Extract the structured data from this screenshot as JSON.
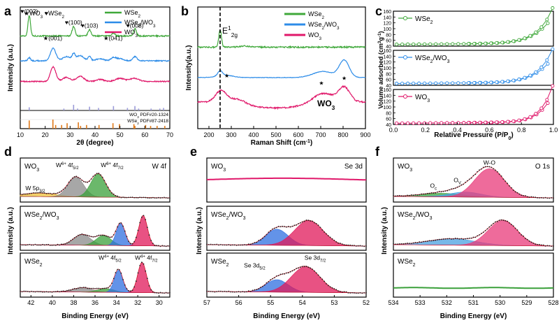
{
  "colors": {
    "wse2": "#3fa83a",
    "comp": "#2d8ce8",
    "wo3": "#e0186a",
    "axis": "#000000",
    "ref_wo3": "#e07a1a",
    "ref_wse2": "#9a9ad8",
    "dots": "#222222",
    "fit_w5p": "#f2c23a",
    "fit_w6": "#8a8a8a",
    "fit_w6b": "#3aa03a",
    "fit_w4a": "#2f6fe0",
    "fit_w4b": "#e0185a",
    "fit_oc": "#3aa03a",
    "fit_ov": "#4aa0e0",
    "fit_wo": "#e83a7a",
    "envelope": "#cc2233"
  },
  "chart_data": [
    {
      "id": "a",
      "type": "line",
      "panel_label": "a",
      "title": "",
      "top_label_parts": [
        "★WO",
        "3",
        " ♥WSe",
        "2"
      ],
      "xlabel_parts": [
        "2θ (degree)"
      ],
      "ylabel": "Intensity (a.u.)",
      "xlim": [
        10,
        70
      ],
      "x_ticks": [
        "10",
        "20",
        "30",
        "40",
        "50",
        "60",
        "70"
      ],
      "legend": [
        {
          "parts": [
            "WSe",
            "2"
          ],
          "color_key": "wse2"
        },
        {
          "parts": [
            "WSe",
            "2",
            "/WO",
            "3"
          ],
          "color_key": "comp"
        },
        {
          "parts": [
            "WO",
            "3"
          ],
          "color_key": "wo3"
        }
      ],
      "series": [
        {
          "name": "WSe2",
          "color_key": "wse2",
          "offset": 0.72,
          "baseline": 0.0,
          "noise": 0.012,
          "peaks": [
            [
              13.6,
              0.2,
              0.5
            ],
            [
              31.4,
              0.09,
              0.6
            ],
            [
              37.8,
              0.06,
              0.6
            ],
            [
              47.4,
              0.03,
              0.6
            ],
            [
              56.0,
              0.07,
              0.6
            ]
          ]
        },
        {
          "name": "WSe2/WO3",
          "color_key": "comp",
          "offset": 0.48,
          "baseline": 0.0,
          "noise": 0.01,
          "peaks": [
            [
              13.6,
              0.03,
              0.5
            ],
            [
              23.2,
              0.12,
              1.1
            ],
            [
              28.5,
              0.04,
              1.5
            ],
            [
              31.4,
              0.06,
              0.6
            ],
            [
              34.0,
              0.05,
              1.5
            ],
            [
              37.8,
              0.04,
              0.6
            ],
            [
              42.0,
              0.02,
              1.5
            ],
            [
              47.4,
              0.03,
              1.0
            ],
            [
              50.0,
              0.02,
              1.5
            ],
            [
              56.0,
              0.04,
              0.8
            ]
          ]
        },
        {
          "name": "WO3",
          "color_key": "wo3",
          "offset": 0.28,
          "baseline": 0.0,
          "noise": 0.01,
          "peaks": [
            [
              23.2,
              0.14,
              1.1
            ],
            [
              28.5,
              0.04,
              1.5
            ],
            [
              34.0,
              0.05,
              1.5
            ],
            [
              42.0,
              0.02,
              1.5
            ],
            [
              50.0,
              0.03,
              1.8
            ],
            [
              55.8,
              0.03,
              1.8
            ]
          ]
        }
      ],
      "annotations": [
        {
          "text": "♥(002)",
          "x": 13.6,
          "y": 0.94
        },
        {
          "text": "★(001)",
          "x": 23.0,
          "y": 0.68
        },
        {
          "text": "♥(100)",
          "x": 31.4,
          "y": 0.83
        },
        {
          "text": "♥(103)",
          "x": 37.8,
          "y": 0.8
        },
        {
          "text": "★(041)",
          "x": 47.2,
          "y": 0.68
        },
        {
          "text": "♥(008)",
          "x": 56.0,
          "y": 0.8
        }
      ],
      "reference_lines": {
        "wse2_label_parts": [
          "WSe",
          "2",
          " PDF#87-2418"
        ],
        "wo3_label_parts": [
          "WO",
          "3",
          " PDF#20-1324"
        ],
        "wse2": [
          [
            13.6,
            0.5
          ],
          [
            27.5,
            0.3
          ],
          [
            31.4,
            0.9
          ],
          [
            33.0,
            0.3
          ],
          [
            37.8,
            0.6
          ],
          [
            41.4,
            0.4
          ],
          [
            47.4,
            0.7
          ],
          [
            53.0,
            0.4
          ],
          [
            56.0,
            0.7
          ],
          [
            57.5,
            0.3
          ],
          [
            62.5,
            0.3
          ],
          [
            66.0,
            0.3
          ],
          [
            67.5,
            0.4
          ]
        ],
        "wo3": [
          [
            13.6,
            0.9
          ],
          [
            23.1,
            1.0
          ],
          [
            24.2,
            0.4
          ],
          [
            26.6,
            0.4
          ],
          [
            28.8,
            0.6
          ],
          [
            33.3,
            0.7
          ],
          [
            34.2,
            0.3
          ],
          [
            36.6,
            0.4
          ],
          [
            41.6,
            0.4
          ],
          [
            47.2,
            0.6
          ],
          [
            49.8,
            0.5
          ],
          [
            55.6,
            0.5
          ],
          [
            56.0,
            0.3
          ],
          [
            60.3,
            0.4
          ],
          [
            62.3,
            0.3
          ],
          [
            64.9,
            0.3
          ],
          [
            68.0,
            0.3
          ]
        ]
      }
    },
    {
      "id": "b",
      "type": "line",
      "panel_label": "b",
      "xlabel_parts": [
        "Raman Shift (cm",
        "-1",
        ")"
      ],
      "ylabel": "Intensity(a.u.)",
      "xlim": [
        150,
        900
      ],
      "x_ticks": [
        "200",
        "300",
        "400",
        "500",
        "600",
        "700",
        "800",
        "900"
      ],
      "dashed_x": 250,
      "peak_label_parts": [
        "E",
        "1",
        "2g"
      ],
      "legend": [
        {
          "parts": [
            "WSe",
            "2"
          ],
          "color_key": "wse2"
        },
        {
          "parts": [
            "WSe",
            "2",
            "/WO",
            "3"
          ],
          "color_key": "comp"
        },
        {
          "parts": [
            "WO",
            "3"
          ],
          "color_key": "wo3"
        }
      ],
      "inline_label_parts": [
        "WO",
        "3"
      ],
      "series": [
        {
          "name": "WSe2",
          "color_key": "wse2",
          "offset": 0.67,
          "baseline": 0.0,
          "noise": 0.012,
          "peaks": [
            [
              250,
              0.14,
              6
            ],
            [
              360,
              0.01,
              20
            ]
          ]
        },
        {
          "name": "WSe2/WO3",
          "color_key": "comp",
          "offset": 0.42,
          "baseline": 0.0,
          "noise": 0.004,
          "peaks": [
            [
              250,
              0.04,
              10
            ],
            [
              270,
              0.02,
              35
            ],
            [
              710,
              0.05,
              45
            ],
            [
              805,
              0.14,
              22
            ]
          ]
        },
        {
          "name": "WO3",
          "color_key": "wo3",
          "offset": 0.22,
          "baseline": 0.0,
          "noise": 0.012,
          "peaks": [
            [
              255,
              0.1,
              25
            ],
            [
              330,
              0.04,
              30
            ],
            [
              710,
              0.08,
              45
            ],
            [
              805,
              0.12,
              25
            ]
          ]
        }
      ],
      "star_marks": [
        [
          280,
          0.42
        ],
        [
          703,
          0.36
        ],
        [
          805,
          0.4
        ]
      ]
    },
    {
      "id": "c",
      "type": "line",
      "panel_label": "c",
      "xlabel_parts": [
        "Relative Pressure (P/P",
        "0",
        ")"
      ],
      "ylabel_parts": [
        "Volume adsorbed (cm",
        "3",
        "g",
        "-1",
        ")"
      ],
      "xlim": [
        0.0,
        1.0
      ],
      "x_ticks": [
        "0.0",
        "0.2",
        "0.4",
        "0.6",
        "0.8",
        "1.0"
      ],
      "sub_ylim": [
        40,
        160
      ],
      "sub_y_ticks": [
        "40",
        "60",
        "80",
        "100",
        "120",
        "140",
        "160"
      ],
      "subplots": [
        {
          "name_parts": [
            "WSe",
            "2"
          ],
          "color_key": "wse2",
          "base": 46,
          "rise": 95,
          "k": 9
        },
        {
          "name_parts": [
            "WSe",
            "2",
            "/WO",
            "3"
          ],
          "color_key": "comp",
          "base": 46,
          "rise": 88,
          "k": 9
        },
        {
          "name_parts": [
            "WO",
            "3"
          ],
          "color_key": "wo3",
          "base": 44,
          "rise": 100,
          "k": 12
        }
      ]
    },
    {
      "id": "d",
      "type": "line",
      "panel_label": "d",
      "xlabel_parts": [
        "Binding Energy (eV)"
      ],
      "ylabel": "Intensity (a.u.)",
      "xlim": [
        43,
        29
      ],
      "x_ticks": [
        "42",
        "40",
        "38",
        "36",
        "34",
        "32",
        "30"
      ],
      "subplots": [
        {
          "name_parts": [
            "WO",
            "3"
          ],
          "corner_parts": [
            "W 4f"
          ],
          "components": [
            {
              "c": 41.2,
              "a": 0.1,
              "w": 1.6,
              "color_key": "fit_w5p"
            },
            {
              "c": 37.8,
              "a": 0.55,
              "w": 0.75,
              "color_key": "fit_w6"
            },
            {
              "c": 35.7,
              "a": 0.65,
              "w": 0.7,
              "color_key": "fit_w6b"
            }
          ],
          "labels": [
            {
              "parts": [
                "W 5p",
                "3/2"
              ],
              "x": 41.6,
              "y": 0.4
            },
            {
              "parts": [
                "W",
                "6+",
                " 4f",
                "5/2"
              ],
              "x": 38.6,
              "y": 0.92
            },
            {
              "parts": [
                "W",
                "6+",
                " 4f",
                "7/2"
              ],
              "x": 34.4,
              "y": 0.92
            }
          ]
        },
        {
          "name_parts": [
            "WSe",
            "2",
            "/WO",
            "3"
          ],
          "corner_parts": [],
          "components": [
            {
              "c": 37.2,
              "a": 0.3,
              "w": 0.8,
              "color_key": "fit_w6"
            },
            {
              "c": 35.2,
              "a": 0.28,
              "w": 0.7,
              "color_key": "fit_w6b"
            },
            {
              "c": 33.6,
              "a": 0.62,
              "w": 0.42,
              "color_key": "fit_w4a"
            },
            {
              "c": 31.5,
              "a": 0.85,
              "w": 0.4,
              "color_key": "fit_w4b"
            }
          ],
          "labels": []
        },
        {
          "name_parts": [
            "WSe",
            "2"
          ],
          "corner_parts": [],
          "components": [
            {
              "c": 37.2,
              "a": 0.12,
              "w": 0.9,
              "color_key": "fit_w6"
            },
            {
              "c": 35.0,
              "a": 0.1,
              "w": 0.8,
              "color_key": "fit_w6b"
            },
            {
              "c": 33.8,
              "a": 0.62,
              "w": 0.4,
              "color_key": "fit_w4a"
            },
            {
              "c": 31.6,
              "a": 0.85,
              "w": 0.4,
              "color_key": "fit_w4b"
            }
          ],
          "labels": [
            {
              "parts": [
                "W",
                "4+",
                " 4f",
                "5/2"
              ],
              "x": 34.6,
              "y": 0.98
            },
            {
              "parts": [
                "W",
                "4+",
                " 4f",
                "7/2"
              ],
              "x": 31.2,
              "y": 0.98
            }
          ]
        }
      ]
    },
    {
      "id": "e",
      "type": "line",
      "panel_label": "e",
      "xlabel_parts": [
        "Binding Energy (eV)"
      ],
      "ylabel": "Intensity (a.u.)",
      "xlim": [
        57,
        52
      ],
      "x_ticks": [
        "57",
        "56",
        "55",
        "54",
        "53",
        "52"
      ],
      "subplots": [
        {
          "name_parts": [
            "WO",
            "3"
          ],
          "corner_parts": [
            "Se 3d"
          ],
          "flat": true,
          "color_key": "wo3",
          "components": [],
          "labels": []
        },
        {
          "name_parts": [
            "WSe",
            "2",
            "/WO",
            "3"
          ],
          "corner_parts": [],
          "components": [
            {
              "c": 54.8,
              "a": 0.45,
              "w": 0.35,
              "color_key": "fit_w4a"
            },
            {
              "c": 53.8,
              "a": 0.7,
              "w": 0.45,
              "color_key": "fit_w4b"
            }
          ],
          "labels": []
        },
        {
          "name_parts": [
            "WSe",
            "2"
          ],
          "corner_parts": [],
          "components": [
            {
              "c": 54.8,
              "a": 0.35,
              "w": 0.35,
              "color_key": "fit_w4a"
            },
            {
              "c": 53.9,
              "a": 0.72,
              "w": 0.45,
              "color_key": "fit_w4b"
            }
          ],
          "labels": [
            {
              "parts": [
                "Se 3d",
                "5/2"
              ],
              "x": 55.5,
              "y": 0.8
            },
            {
              "parts": [
                "Se 3d",
                "7/2"
              ],
              "x": 53.6,
              "y": 0.98
            }
          ]
        }
      ]
    },
    {
      "id": "f",
      "type": "line",
      "panel_label": "f",
      "xlabel_parts": [
        "Binding Energy (eV)"
      ],
      "ylabel": "Intensity (a.u.)",
      "xlim": [
        534,
        528
      ],
      "x_ticks": [
        "534",
        "533",
        "532",
        "531",
        "530",
        "529",
        "528"
      ],
      "subplots": [
        {
          "name_parts": [
            "WO",
            "3"
          ],
          "corner_parts": [
            "O 1s"
          ],
          "components": [
            {
              "c": 532.2,
              "a": 0.1,
              "w": 0.8,
              "color_key": "fit_oc"
            },
            {
              "c": 531.3,
              "a": 0.14,
              "w": 0.6,
              "color_key": "fit_ov"
            },
            {
              "c": 530.4,
              "a": 0.8,
              "w": 0.55,
              "color_key": "fit_wo"
            }
          ],
          "labels": [
            {
              "parts": [
                "O",
                "c"
              ],
              "x": 532.5,
              "y": 0.45
            },
            {
              "parts": [
                "O",
                "V"
              ],
              "x": 531.6,
              "y": 0.58
            },
            {
              "parts": [
                "W-O"
              ],
              "x": 530.4,
              "y": 0.98
            }
          ]
        },
        {
          "name_parts": [
            "WSe",
            "2",
            "/WO",
            "3"
          ],
          "corner_parts": [],
          "components": [
            {
              "c": 531.8,
              "a": 0.18,
              "w": 0.9,
              "color_key": "fit_ov"
            },
            {
              "c": 529.9,
              "a": 0.7,
              "w": 0.55,
              "color_key": "fit_wo"
            }
          ],
          "labels": []
        },
        {
          "name_parts": [
            "WSe",
            "2"
          ],
          "corner_parts": [],
          "flat": true,
          "color_key": "fit_oc",
          "components": [],
          "labels": []
        }
      ]
    }
  ]
}
